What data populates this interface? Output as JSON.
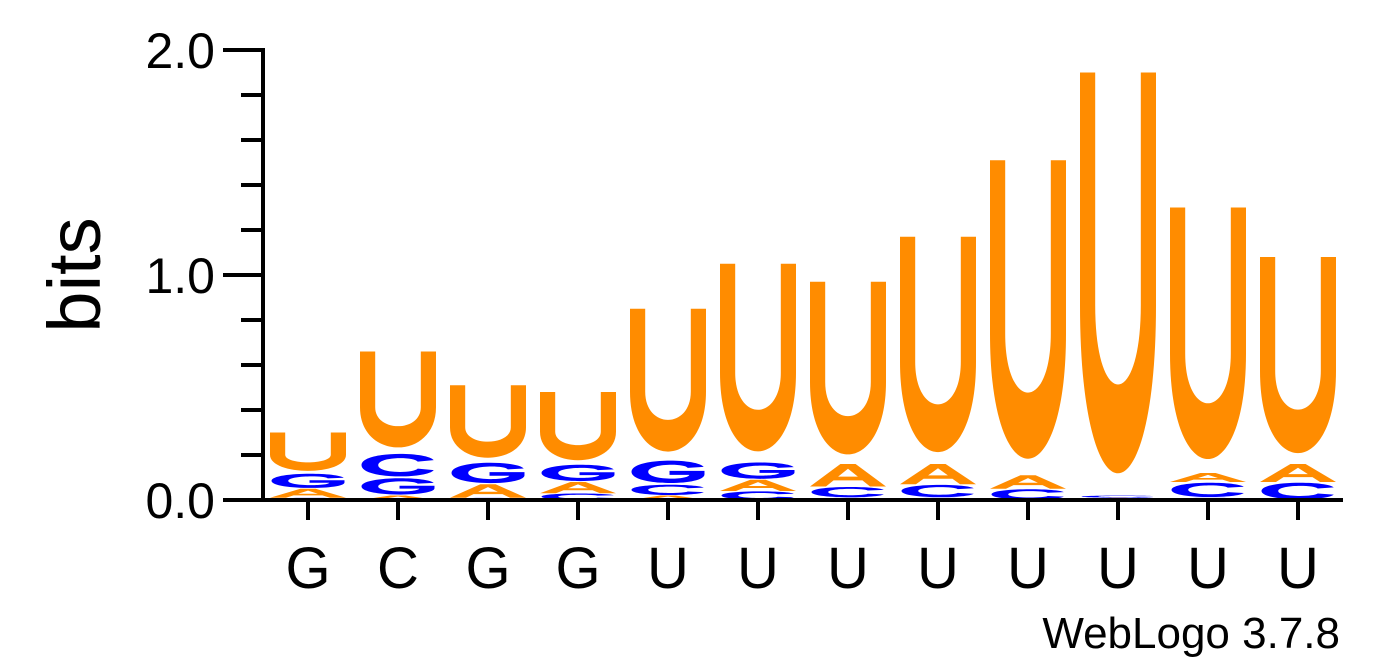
{
  "chart_data": {
    "type": "sequence-logo",
    "ylabel": "bits",
    "ylim": [
      0,
      2
    ],
    "yticks": [
      "0.0",
      "1.0",
      "2.0"
    ],
    "credit": "WebLogo 3.7.8",
    "colors": {
      "U": "#ff8c00",
      "G": "#0000ff",
      "C": "#0000ff",
      "A": "#ff8c00"
    },
    "positions": [
      {
        "label": "G",
        "stack": [
          {
            "letter": "C",
            "bits": 0.01
          },
          {
            "letter": "A",
            "bits": 0.04
          },
          {
            "letter": "G",
            "bits": 0.07
          },
          {
            "letter": "U",
            "bits": 0.18
          }
        ]
      },
      {
        "label": "C",
        "stack": [
          {
            "letter": "A",
            "bits": 0.02
          },
          {
            "letter": "G",
            "bits": 0.08
          },
          {
            "letter": "C",
            "bits": 0.11
          },
          {
            "letter": "U",
            "bits": 0.45
          }
        ]
      },
      {
        "label": "G",
        "stack": [
          {
            "letter": "C",
            "bits": 0.01
          },
          {
            "letter": "A",
            "bits": 0.06
          },
          {
            "letter": "G",
            "bits": 0.1
          },
          {
            "letter": "U",
            "bits": 0.34
          }
        ]
      },
      {
        "label": "G",
        "stack": [
          {
            "letter": "C",
            "bits": 0.03
          },
          {
            "letter": "A",
            "bits": 0.05
          },
          {
            "letter": "G",
            "bits": 0.08
          },
          {
            "letter": "U",
            "bits": 0.32
          }
        ]
      },
      {
        "label": "U",
        "stack": [
          {
            "letter": "A",
            "bits": 0.02
          },
          {
            "letter": "C",
            "bits": 0.05
          },
          {
            "letter": "G",
            "bits": 0.11
          },
          {
            "letter": "U",
            "bits": 0.67
          }
        ]
      },
      {
        "label": "U",
        "stack": [
          {
            "letter": "C",
            "bits": 0.04
          },
          {
            "letter": "A",
            "bits": 0.05
          },
          {
            "letter": "G",
            "bits": 0.08
          },
          {
            "letter": "U",
            "bits": 0.88
          }
        ]
      },
      {
        "label": "U",
        "stack": [
          {
            "letter": "G",
            "bits": 0.01
          },
          {
            "letter": "C",
            "bits": 0.05
          },
          {
            "letter": "A",
            "bits": 0.1
          },
          {
            "letter": "U",
            "bits": 0.81
          }
        ]
      },
      {
        "label": "U",
        "stack": [
          {
            "letter": "G",
            "bits": 0.01
          },
          {
            "letter": "C",
            "bits": 0.06
          },
          {
            "letter": "A",
            "bits": 0.09
          },
          {
            "letter": "U",
            "bits": 1.01
          }
        ]
      },
      {
        "label": "U",
        "stack": [
          {
            "letter": "C",
            "bits": 0.05
          },
          {
            "letter": "A",
            "bits": 0.06
          },
          {
            "letter": "U",
            "bits": 1.4
          }
        ]
      },
      {
        "label": "U",
        "stack": [
          {
            "letter": "A",
            "bits": 0.01
          },
          {
            "letter": "C",
            "bits": 0.01
          },
          {
            "letter": "U",
            "bits": 1.88
          }
        ]
      },
      {
        "label": "U",
        "stack": [
          {
            "letter": "G",
            "bits": 0.01
          },
          {
            "letter": "C",
            "bits": 0.07
          },
          {
            "letter": "A",
            "bits": 0.04
          },
          {
            "letter": "U",
            "bits": 1.18
          }
        ]
      },
      {
        "label": "U",
        "stack": [
          {
            "letter": "C",
            "bits": 0.08
          },
          {
            "letter": "A",
            "bits": 0.08
          },
          {
            "letter": "U",
            "bits": 0.92
          }
        ]
      }
    ]
  }
}
